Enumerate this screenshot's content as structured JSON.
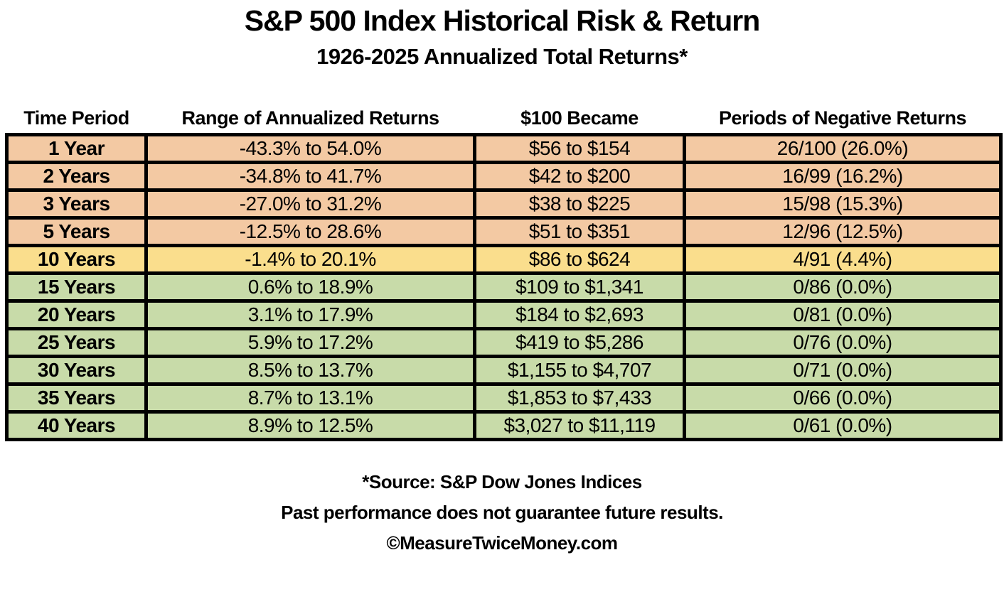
{
  "header": {
    "title": "S&P 500 Index Historical Risk & Return",
    "subtitle": "1926-2025 Annualized Total Returns*"
  },
  "colors": {
    "orange": "#F3C9A3",
    "yellow": "#FADE8D",
    "green": "#C8DBA9",
    "border": "#000000"
  },
  "chart_data": {
    "type": "table",
    "title": "S&P 500 Index Historical Risk & Return",
    "subtitle": "1926-2025 Annualized Total Returns*",
    "columns": [
      "Time Period",
      "Range of Annualized Returns",
      "$100 Became",
      "Periods of Negative Returns"
    ],
    "rows": [
      {
        "period": "1 Year",
        "range": "-43.3% to 54.0%",
        "became": "$56 to $154",
        "negative": "26/100 (26.0%)",
        "tone": "orange"
      },
      {
        "period": "2 Years",
        "range": "-34.8% to 41.7%",
        "became": "$42 to $200",
        "negative": "16/99 (16.2%)",
        "tone": "orange"
      },
      {
        "period": "3 Years",
        "range": "-27.0% to 31.2%",
        "became": "$38 to $225",
        "negative": "15/98 (15.3%)",
        "tone": "orange"
      },
      {
        "period": "5 Years",
        "range": "-12.5% to 28.6%",
        "became": "$51 to $351",
        "negative": "12/96 (12.5%)",
        "tone": "orange"
      },
      {
        "period": "10 Years",
        "range": "-1.4% to 20.1%",
        "became": "$86 to $624",
        "negative": "4/91 (4.4%)",
        "tone": "yellow"
      },
      {
        "period": "15 Years",
        "range": "0.6% to 18.9%",
        "became": "$109 to $1,341",
        "negative": "0/86 (0.0%)",
        "tone": "green"
      },
      {
        "period": "20 Years",
        "range": "3.1% to 17.9%",
        "became": "$184 to $2,693",
        "negative": "0/81 (0.0%)",
        "tone": "green"
      },
      {
        "period": "25 Years",
        "range": "5.9% to 17.2%",
        "became": "$419 to $5,286",
        "negative": "0/76 (0.0%)",
        "tone": "green"
      },
      {
        "period": "30 Years",
        "range": "8.5% to 13.7%",
        "became": "$1,155 to $4,707",
        "negative": "0/71 (0.0%)",
        "tone": "green"
      },
      {
        "period": "35 Years",
        "range": "8.7% to 13.1%",
        "became": "$1,853 to $7,433",
        "negative": "0/66 (0.0%)",
        "tone": "green"
      },
      {
        "period": "40 Years",
        "range": "8.9% to 12.5%",
        "became": "$3,027 to $11,119",
        "negative": "0/61 (0.0%)",
        "tone": "green"
      }
    ]
  },
  "footer": {
    "source": "*Source: S&P Dow Jones Indices",
    "disclaimer": "Past performance does not guarantee future results.",
    "copyright": "©MeasureTwiceMoney.com"
  }
}
